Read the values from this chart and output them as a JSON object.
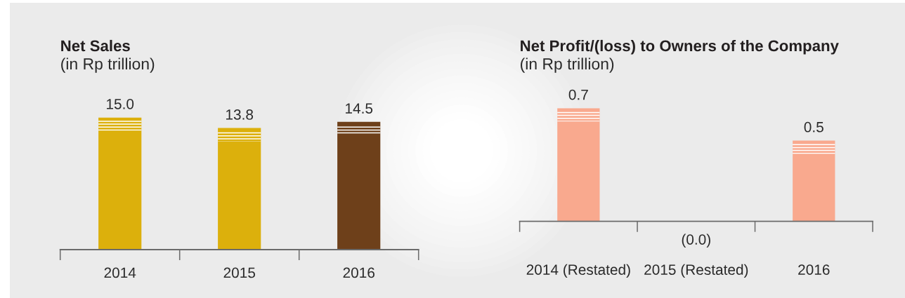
{
  "chart_data": [
    {
      "type": "bar",
      "title": "Net Sales",
      "subtitle": "(in Rp trillion)",
      "categories": [
        "2014",
        "2015",
        "2016"
      ],
      "values": [
        15.0,
        13.8,
        14.5
      ],
      "colors": [
        "#dcb00c",
        "#dcb00c",
        "#6e401a"
      ],
      "value_labels": [
        "15.0",
        "13.8",
        "14.5"
      ]
    },
    {
      "type": "bar",
      "title": "Net Profit/(loss) to Owners of the Company",
      "subtitle": "(in Rp trillion)",
      "categories": [
        "2014 (Restated)",
        "2015 (Restated)",
        "2016"
      ],
      "values": [
        0.7,
        0.0,
        0.5
      ],
      "colors": [
        "#f9a98e",
        "#f9a98e",
        "#f9a98e"
      ],
      "value_labels": [
        "0.7",
        "(0.0)",
        "0.5"
      ]
    }
  ]
}
